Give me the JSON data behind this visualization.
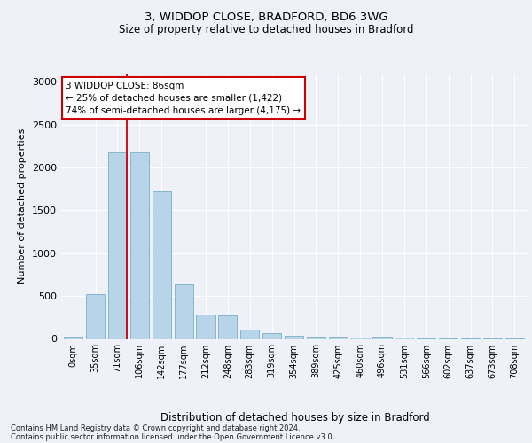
{
  "title1": "3, WIDDOP CLOSE, BRADFORD, BD6 3WG",
  "title2": "Size of property relative to detached houses in Bradford",
  "xlabel": "Distribution of detached houses by size in Bradford",
  "ylabel": "Number of detached properties",
  "categories": [
    "0sqm",
    "35sqm",
    "71sqm",
    "106sqm",
    "142sqm",
    "177sqm",
    "212sqm",
    "248sqm",
    "283sqm",
    "319sqm",
    "354sqm",
    "389sqm",
    "425sqm",
    "460sqm",
    "496sqm",
    "531sqm",
    "566sqm",
    "602sqm",
    "637sqm",
    "673sqm",
    "708sqm"
  ],
  "values": [
    30,
    520,
    2180,
    2175,
    1720,
    635,
    280,
    275,
    110,
    70,
    38,
    28,
    28,
    18,
    22,
    18,
    5,
    5,
    5,
    5,
    5
  ],
  "bar_color": "#b8d4e8",
  "bar_edge_color": "#7aaec8",
  "vline_color": "#cc0000",
  "vline_x": 2.43,
  "annotation_line1": "3 WIDDOP CLOSE: 86sqm",
  "annotation_line2": "← 25% of detached houses are smaller (1,422)",
  "annotation_line3": "74% of semi-detached houses are larger (4,175) →",
  "annotation_box_facecolor": "#ffffff",
  "annotation_box_edgecolor": "#cc0000",
  "ylim": [
    0,
    3100
  ],
  "yticks": [
    0,
    500,
    1000,
    1500,
    2000,
    2500,
    3000
  ],
  "bg_color": "#eef2f8",
  "plot_bg_color": "#eef2f8",
  "footer1": "Contains HM Land Registry data © Crown copyright and database right 2024.",
  "footer2": "Contains public sector information licensed under the Open Government Licence v3.0."
}
